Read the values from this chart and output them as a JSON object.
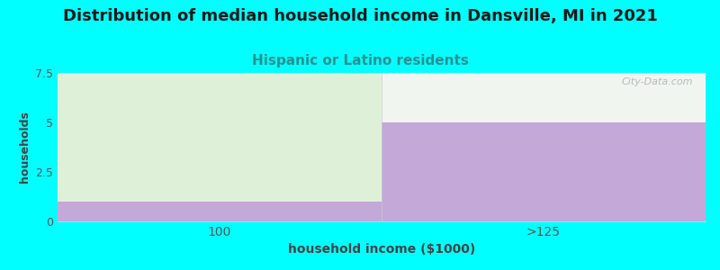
{
  "title": "Distribution of median household income in Dansville, MI in 2021",
  "subtitle": "Hispanic or Latino residents",
  "subtitle_color": "#2A9090",
  "xlabel": "household income ($1000)",
  "ylabel": "households",
  "background_color": "#00FFFF",
  "plot_bg_color": "#FFFFFF",
  "categories": [
    "100",
    ">125"
  ],
  "values": [
    1,
    5
  ],
  "ylim": [
    0,
    7.5
  ],
  "yticks": [
    0,
    2.5,
    5,
    7.5
  ],
  "bar_color": "#C4A8D8",
  "bar_color_left_green": "#DFF0D8",
  "bar_color_right_top": "#F0F5F0",
  "title_fontsize": 13,
  "subtitle_fontsize": 11,
  "axis_label_color": "#444444",
  "tick_label_color": "#555555",
  "watermark": "City-Data.com"
}
